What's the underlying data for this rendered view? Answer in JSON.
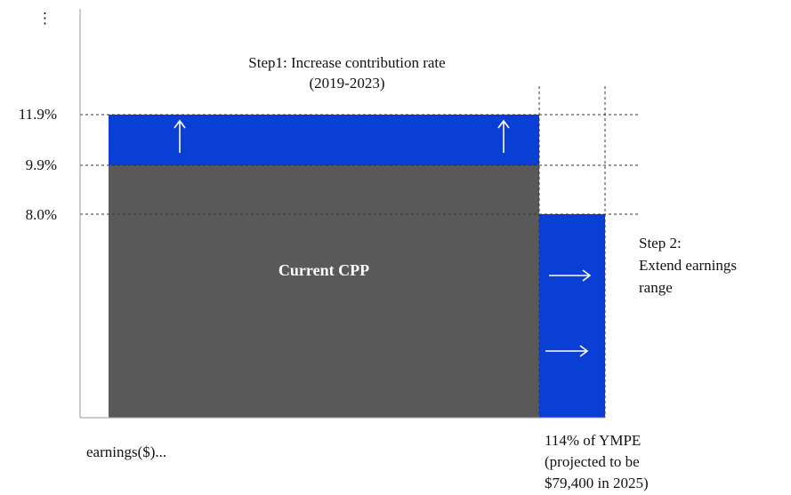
{
  "menu": "⋮",
  "step1": {
    "title": "Step1: Increase contribution rate",
    "period": "(2019-2023)"
  },
  "rates": [
    "11.9%",
    "9.9%",
    "8.0%"
  ],
  "center_label": "Current CPP",
  "step2": [
    "Step 2:",
    "Extend earnings",
    "range"
  ],
  "x_label": "earnings($)...",
  "ympe_note": [
    "114% of YMPE",
    "(projected to be",
    "$79,400 in 2025)"
  ]
}
